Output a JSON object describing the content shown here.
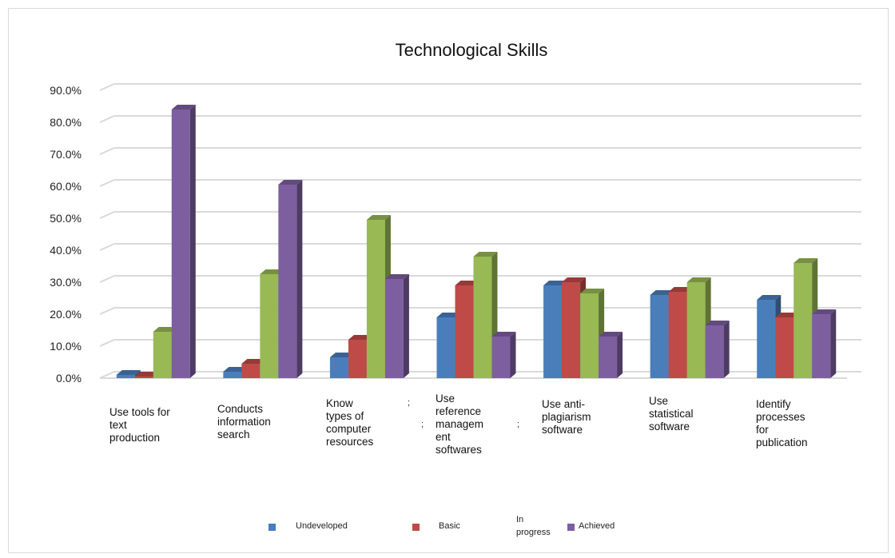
{
  "chart_data": {
    "type": "bar",
    "title": "Technological Skills",
    "categories": [
      "Use tools for\ntext\nproduction",
      "Conducts\ninformation\nsearch",
      "Know\ntypes of\ncomputer\nresources",
      "Use\nreference\nmanagem\nent\nsoftwares",
      "Use anti-\nplagiarism\nsoftware",
      "Use\nstatistical\nsoftware",
      "Identify\nprocesses\nfor\npublication"
    ],
    "series": [
      {
        "name": "Undeveloped",
        "color": "#4a7ebb",
        "values": [
          1.0,
          2.0,
          6.5,
          19.0,
          29.0,
          26.0,
          24.5
        ]
      },
      {
        "name": "Basic",
        "color": "#be4b48",
        "values": [
          0.5,
          4.5,
          12.0,
          29.0,
          30.0,
          27.0,
          19.0
        ]
      },
      {
        "name": "In\nprogress",
        "color": "#98b954",
        "values": [
          14.5,
          32.5,
          49.5,
          38.0,
          26.5,
          30.0,
          36.0
        ]
      },
      {
        "name": "Achieved",
        "color": "#7d5fa0",
        "values": [
          84.0,
          60.5,
          31.0,
          13.0,
          13.0,
          16.5,
          20.0
        ]
      }
    ],
    "y_ticks": [
      "0.0%",
      "10.0%",
      "20.0%",
      "30.0%",
      "40.0%",
      "50.0%",
      "60.0%",
      "70.0%",
      "80.0%",
      "90.0%"
    ],
    "ylim": [
      0,
      90
    ],
    "grid": true,
    "legend_position": "bottom",
    "stray_marks": [
      ";",
      ";",
      ";"
    ]
  }
}
